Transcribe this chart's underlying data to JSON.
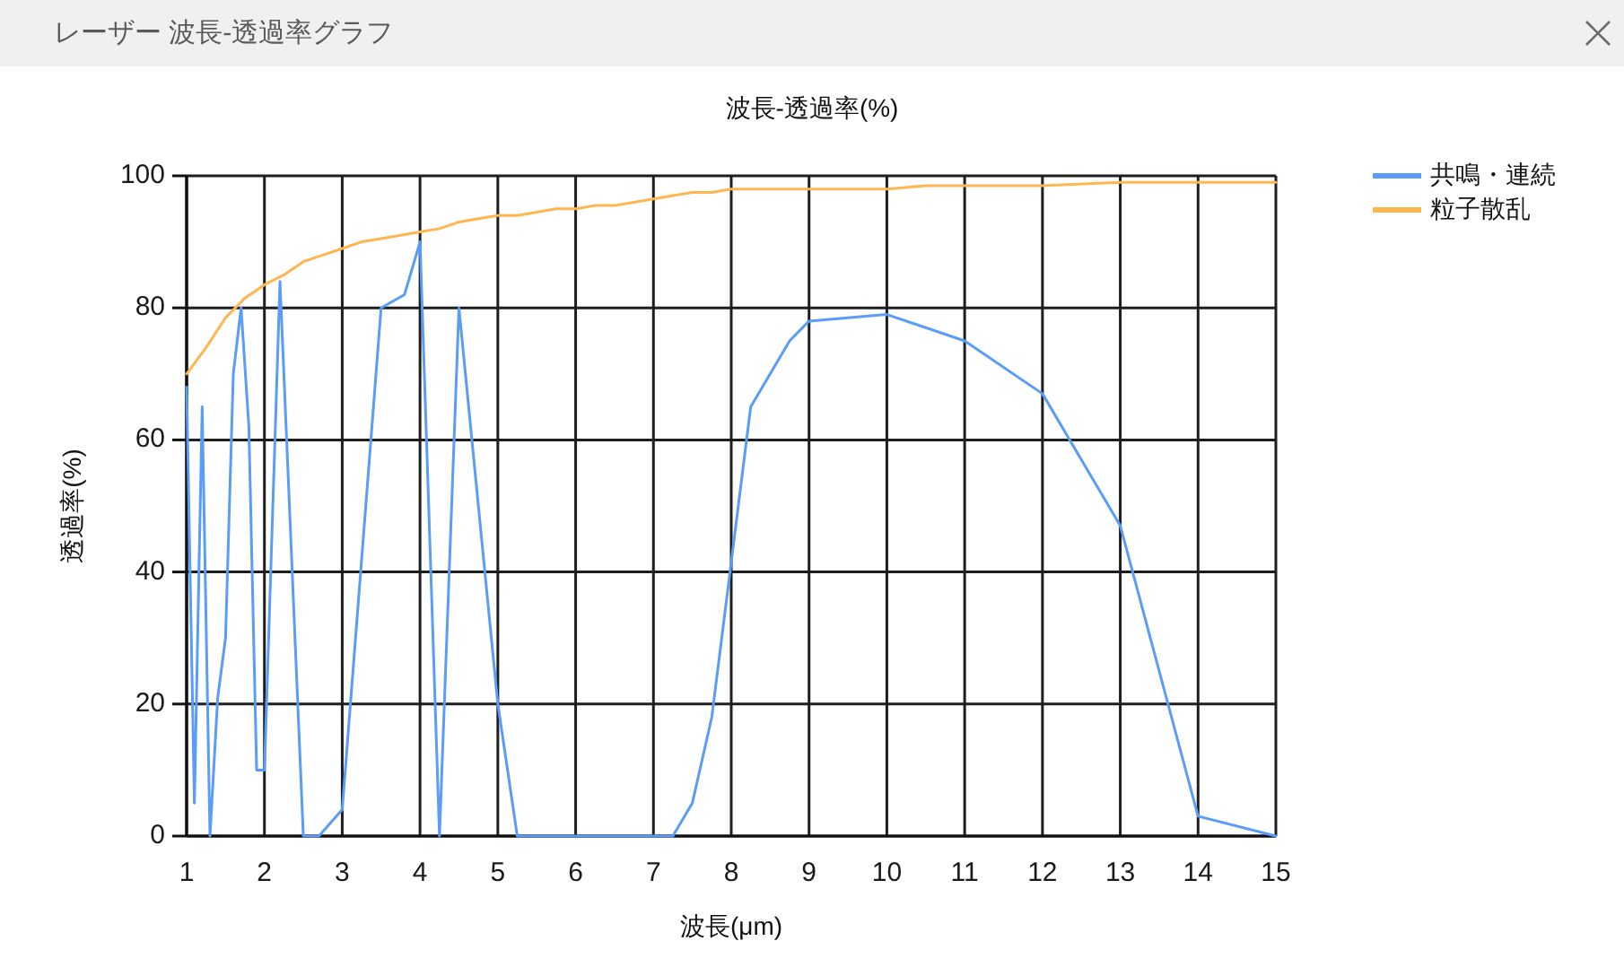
{
  "chart_data": {
    "type": "line",
    "title": "波長-透過率(%)",
    "xlabel": "波長(μm)",
    "ylabel": "透過率(%)",
    "annotations": [
      "レーザー 波長-透過率グラフ"
    ],
    "xlim": [
      1,
      15
    ],
    "ylim": [
      0,
      100
    ],
    "xticks": [
      1,
      2,
      3,
      4,
      5,
      6,
      7,
      8,
      9,
      10,
      11,
      12,
      13,
      14,
      15
    ],
    "yticks": [
      0,
      20,
      40,
      60,
      80,
      100
    ],
    "grid": true,
    "legend": "top right",
    "series": [
      {
        "name": "共鳴・連続",
        "color": "#5a9cf8",
        "x": [
          1,
          1.1,
          1.2,
          1.3,
          1.4,
          1.5,
          1.6,
          1.7,
          1.8,
          1.9,
          2,
          2.2,
          2.5,
          2.7,
          3,
          3.5,
          3.8,
          4,
          4.25,
          4.5,
          5,
          5.25,
          7.25,
          7.5,
          7.75,
          8.25,
          8.75,
          9,
          10,
          11,
          12,
          13,
          14,
          15
        ],
        "values": [
          68,
          5,
          65,
          0,
          21,
          30,
          70,
          80,
          62,
          10,
          10,
          84,
          0,
          0,
          4,
          80,
          82,
          90,
          0,
          80,
          20,
          0,
          0,
          5,
          18,
          65,
          75,
          78,
          79,
          75,
          67,
          47,
          3,
          0
        ]
      },
      {
        "name": "粒子散乱",
        "color": "#ffb650",
        "x": [
          1,
          1.25,
          1.5,
          1.75,
          2,
          2.25,
          2.5,
          2.75,
          3,
          3.25,
          3.5,
          3.75,
          4,
          4.25,
          4.5,
          4.75,
          5,
          5.25,
          5.5,
          5.75,
          6,
          6.25,
          6.5,
          6.75,
          7,
          7.25,
          7.5,
          7.75,
          8,
          9,
          10,
          10.5,
          11,
          12,
          13,
          14,
          15
        ],
        "values": [
          70,
          74,
          78.5,
          81.5,
          83.5,
          85,
          87,
          88,
          89,
          90,
          90.5,
          91,
          91.5,
          92,
          93,
          93.5,
          94,
          94,
          94.5,
          95,
          95,
          95.5,
          95.5,
          96,
          96.5,
          97,
          97.5,
          97.5,
          98,
          98,
          98,
          98.5,
          98.5,
          98.5,
          99,
          99,
          99
        ]
      }
    ]
  }
}
